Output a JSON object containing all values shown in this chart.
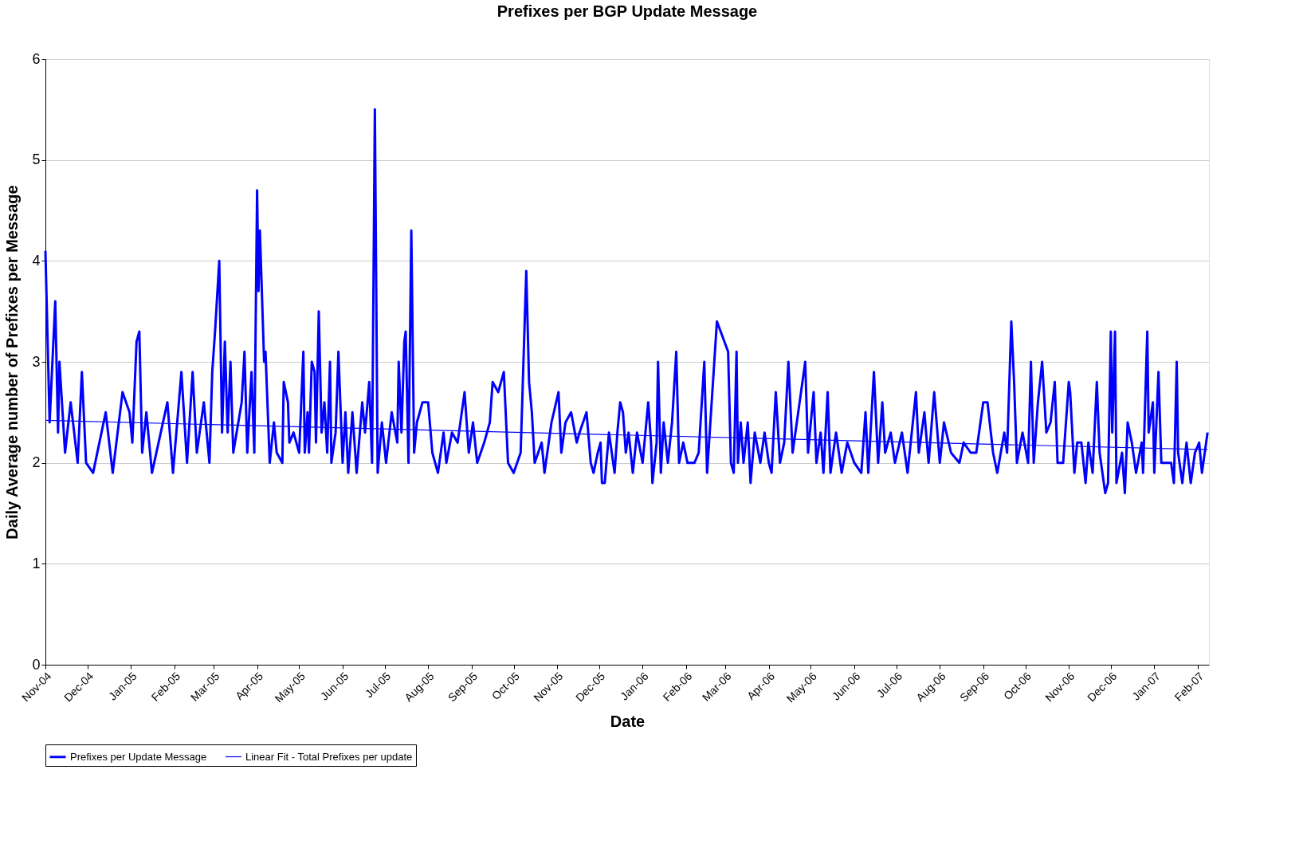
{
  "chart_data": {
    "type": "line",
    "title": "Prefixes per BGP Update Message",
    "xlabel": "Date",
    "ylabel": "Daily Average number of Prefixes per Message",
    "xlim": [
      "2004-11-01",
      "2007-02-09"
    ],
    "ylim": [
      0,
      6
    ],
    "yticks": [
      0,
      1,
      2,
      3,
      4,
      5,
      6
    ],
    "xticks": [
      {
        "value": "2004-11-01",
        "label": "Nov-04"
      },
      {
        "value": "2004-12-01",
        "label": "Dec-04"
      },
      {
        "value": "2005-01-01",
        "label": "Jan-05"
      },
      {
        "value": "2005-02-01",
        "label": "Feb-05"
      },
      {
        "value": "2005-03-01",
        "label": "Mar-05"
      },
      {
        "value": "2005-04-01",
        "label": "Apr-05"
      },
      {
        "value": "2005-05-01",
        "label": "May-05"
      },
      {
        "value": "2005-06-01",
        "label": "Jun-05"
      },
      {
        "value": "2005-07-01",
        "label": "Jul-05"
      },
      {
        "value": "2005-08-01",
        "label": "Aug-05"
      },
      {
        "value": "2005-09-01",
        "label": "Sep-05"
      },
      {
        "value": "2005-10-01",
        "label": "Oct-05"
      },
      {
        "value": "2005-11-01",
        "label": "Nov-05"
      },
      {
        "value": "2005-12-01",
        "label": "Dec-05"
      },
      {
        "value": "2006-01-01",
        "label": "Jan-06"
      },
      {
        "value": "2006-02-01",
        "label": "Feb-06"
      },
      {
        "value": "2006-03-01",
        "label": "Mar-06"
      },
      {
        "value": "2006-04-01",
        "label": "Apr-06"
      },
      {
        "value": "2006-05-01",
        "label": "May-06"
      },
      {
        "value": "2006-06-01",
        "label": "Jun-06"
      },
      {
        "value": "2006-07-01",
        "label": "Jul-06"
      },
      {
        "value": "2006-08-01",
        "label": "Aug-06"
      },
      {
        "value": "2006-09-01",
        "label": "Sep-06"
      },
      {
        "value": "2006-10-01",
        "label": "Oct-06"
      },
      {
        "value": "2006-11-01",
        "label": "Nov-06"
      },
      {
        "value": "2006-12-01",
        "label": "Dec-06"
      },
      {
        "value": "2007-01-01",
        "label": "Jan-07"
      },
      {
        "value": "2007-02-01",
        "label": "Feb-07"
      }
    ],
    "grid": "y",
    "legend": "bottom",
    "marker": "none",
    "series": [
      {
        "name": "Prefixes per Update Message",
        "color": "#0000ff",
        "x": [
          "2004-11-01",
          "2004-11-04",
          "2004-11-08",
          "2004-11-10",
          "2004-11-11",
          "2004-11-15",
          "2004-11-19",
          "2004-11-24",
          "2004-11-27",
          "2004-11-30",
          "2004-12-05",
          "2004-12-14",
          "2004-12-19",
          "2004-12-26",
          "2004-12-31",
          "2005-01-02",
          "2005-01-05",
          "2005-01-07",
          "2005-01-09",
          "2005-01-12",
          "2005-01-16",
          "2005-01-27",
          "2005-01-31",
          "2005-02-06",
          "2005-02-10",
          "2005-02-14",
          "2005-02-17",
          "2005-02-22",
          "2005-02-26",
          "2005-02-28",
          "2005-03-02",
          "2005-03-05",
          "2005-03-07",
          "2005-03-09",
          "2005-03-11",
          "2005-03-13",
          "2005-03-15",
          "2005-03-21",
          "2005-03-23",
          "2005-03-25",
          "2005-03-28",
          "2005-03-30",
          "2005-04-01",
          "2005-04-02",
          "2005-04-03",
          "2005-04-06",
          "2005-04-07",
          "2005-04-10",
          "2005-04-13",
          "2005-04-15",
          "2005-04-19",
          "2005-04-20",
          "2005-04-23",
          "2005-04-24",
          "2005-04-27",
          "2005-05-01",
          "2005-05-04",
          "2005-05-05",
          "2005-05-07",
          "2005-05-08",
          "2005-05-10",
          "2005-05-12",
          "2005-05-13",
          "2005-05-15",
          "2005-05-17",
          "2005-05-19",
          "2005-05-21",
          "2005-05-23",
          "2005-05-24",
          "2005-05-27",
          "2005-05-29",
          "2005-06-01",
          "2005-06-03",
          "2005-06-05",
          "2005-06-08",
          "2005-06-11",
          "2005-06-15",
          "2005-06-17",
          "2005-06-20",
          "2005-06-22",
          "2005-06-24",
          "2005-06-26",
          "2005-06-29",
          "2005-07-02",
          "2005-07-06",
          "2005-07-10",
          "2005-07-11",
          "2005-07-13",
          "2005-07-15",
          "2005-07-16",
          "2005-07-18",
          "2005-07-20",
          "2005-07-22",
          "2005-07-24",
          "2005-07-28",
          "2005-08-01",
          "2005-08-04",
          "2005-08-08",
          "2005-08-12",
          "2005-08-14",
          "2005-08-18",
          "2005-08-22",
          "2005-08-27",
          "2005-08-30",
          "2005-09-02",
          "2005-09-05",
          "2005-09-10",
          "2005-09-14",
          "2005-09-16",
          "2005-09-20",
          "2005-09-24",
          "2005-09-27",
          "2005-10-01",
          "2005-10-06",
          "2005-10-10",
          "2005-10-12",
          "2005-10-14",
          "2005-10-16",
          "2005-10-21",
          "2005-10-23",
          "2005-10-28",
          "2005-11-02",
          "2005-11-04",
          "2005-11-07",
          "2005-11-11",
          "2005-11-15",
          "2005-11-17",
          "2005-11-22",
          "2005-11-25",
          "2005-11-27",
          "2005-11-30",
          "2005-12-02",
          "2005-12-03",
          "2005-12-05",
          "2005-12-08",
          "2005-12-12",
          "2005-12-14",
          "2005-12-16",
          "2005-12-18",
          "2005-12-20",
          "2005-12-22",
          "2005-12-25",
          "2005-12-28",
          "2006-01-01",
          "2006-01-03",
          "2006-01-05",
          "2006-01-07",
          "2006-01-08",
          "2006-01-11",
          "2006-01-12",
          "2006-01-14",
          "2006-01-16",
          "2006-01-19",
          "2006-01-22",
          "2006-01-25",
          "2006-01-27",
          "2006-01-30",
          "2006-02-02",
          "2006-02-07",
          "2006-02-10",
          "2006-02-14",
          "2006-02-16",
          "2006-02-23",
          "2006-03-03",
          "2006-03-05",
          "2006-03-07",
          "2006-03-09",
          "2006-03-10",
          "2006-03-12",
          "2006-03-14",
          "2006-03-17",
          "2006-03-19",
          "2006-03-22",
          "2006-03-26",
          "2006-03-29",
          "2006-04-01",
          "2006-04-03",
          "2006-04-06",
          "2006-04-09",
          "2006-04-12",
          "2006-04-15",
          "2006-04-18",
          "2006-04-21",
          "2006-04-24",
          "2006-04-27",
          "2006-04-29",
          "2006-05-03",
          "2006-05-05",
          "2006-05-08",
          "2006-05-10",
          "2006-05-13",
          "2006-05-15",
          "2006-05-19",
          "2006-05-23",
          "2006-05-27",
          "2006-06-01",
          "2006-06-06",
          "2006-06-09",
          "2006-06-11",
          "2006-06-15",
          "2006-06-18",
          "2006-06-21",
          "2006-06-23",
          "2006-06-27",
          "2006-06-30",
          "2006-07-05",
          "2006-07-09",
          "2006-07-15",
          "2006-07-17",
          "2006-07-21",
          "2006-07-24",
          "2006-07-28",
          "2006-08-01",
          "2006-08-04",
          "2006-08-09",
          "2006-08-15",
          "2006-08-18",
          "2006-08-23",
          "2006-08-27",
          "2006-09-01",
          "2006-09-04",
          "2006-09-08",
          "2006-09-11",
          "2006-09-16",
          "2006-09-18",
          "2006-09-21",
          "2006-09-23",
          "2006-09-25",
          "2006-09-29",
          "2006-10-03",
          "2006-10-05",
          "2006-10-07",
          "2006-10-10",
          "2006-10-13",
          "2006-10-16",
          "2006-10-19",
          "2006-10-22",
          "2006-10-24",
          "2006-10-28",
          "2006-11-01",
          "2006-11-02",
          "2006-11-05",
          "2006-11-07",
          "2006-11-10",
          "2006-11-13",
          "2006-11-15",
          "2006-11-18",
          "2006-11-21",
          "2006-11-23",
          "2006-11-27",
          "2006-11-29",
          "2006-12-01",
          "2006-12-02",
          "2006-12-04",
          "2006-12-05",
          "2006-12-09",
          "2006-12-11",
          "2006-12-13",
          "2006-12-16",
          "2006-12-19",
          "2006-12-23",
          "2006-12-24",
          "2006-12-27",
          "2006-12-28",
          "2006-12-31",
          "2007-01-01",
          "2007-01-04",
          "2007-01-06",
          "2007-01-09",
          "2007-01-13",
          "2007-01-15",
          "2007-01-17",
          "2007-01-18",
          "2007-01-21",
          "2007-01-24",
          "2007-01-27",
          "2007-01-30",
          "2007-02-02",
          "2007-02-04",
          "2007-02-08"
        ],
        "values": [
          4.1,
          2.4,
          3.6,
          2.3,
          3.0,
          2.1,
          2.6,
          2.0,
          2.9,
          2.0,
          1.9,
          2.5,
          1.9,
          2.7,
          2.5,
          2.2,
          3.2,
          3.3,
          2.1,
          2.5,
          1.9,
          2.6,
          1.9,
          2.9,
          2.0,
          2.9,
          2.1,
          2.6,
          2.0,
          2.9,
          3.3,
          4.0,
          2.3,
          3.2,
          2.3,
          3.0,
          2.1,
          2.6,
          3.1,
          2.1,
          2.9,
          2.1,
          4.7,
          3.7,
          4.3,
          3.0,
          3.1,
          2.0,
          2.4,
          2.1,
          2.0,
          2.8,
          2.6,
          2.2,
          2.3,
          2.1,
          3.1,
          2.1,
          2.5,
          2.1,
          3.0,
          2.9,
          2.2,
          3.5,
          2.3,
          2.6,
          2.1,
          3.0,
          2.0,
          2.3,
          3.1,
          2.0,
          2.5,
          1.9,
          2.5,
          1.9,
          2.6,
          2.3,
          2.8,
          2.0,
          5.5,
          1.9,
          2.4,
          2.0,
          2.5,
          2.2,
          3.0,
          2.3,
          3.2,
          3.3,
          2.0,
          4.3,
          2.1,
          2.4,
          2.6,
          2.6,
          2.1,
          1.9,
          2.3,
          2.0,
          2.3,
          2.2,
          2.7,
          2.1,
          2.4,
          2.0,
          2.2,
          2.4,
          2.8,
          2.7,
          2.9,
          2.0,
          1.9,
          2.1,
          3.9,
          2.8,
          2.5,
          2.0,
          2.2,
          1.9,
          2.4,
          2.7,
          2.1,
          2.4,
          2.5,
          2.2,
          2.3,
          2.5,
          2.0,
          1.9,
          2.1,
          2.2,
          1.8,
          1.8,
          2.3,
          1.9,
          2.3,
          2.6,
          2.5,
          2.1,
          2.3,
          1.9,
          2.3,
          2.0,
          2.3,
          2.6,
          2.2,
          1.8,
          2.2,
          3.0,
          1.9,
          2.4,
          2.0,
          2.4,
          3.1,
          2.0,
          2.2,
          2.0,
          2.0,
          2.1,
          3.0,
          1.9,
          3.4,
          3.1,
          2.0,
          1.9,
          3.1,
          2.0,
          2.4,
          2.0,
          2.4,
          1.8,
          2.3,
          2.0,
          2.3,
          2.0,
          1.9,
          2.7,
          2.0,
          2.2,
          3.0,
          2.1,
          2.4,
          2.7,
          3.0,
          2.1,
          2.7,
          2.0,
          2.3,
          1.9,
          2.7,
          1.9,
          2.3,
          1.9,
          2.2,
          2.0,
          1.9,
          2.5,
          1.9,
          2.9,
          2.0,
          2.6,
          2.1,
          2.3,
          2.0,
          2.3,
          1.9,
          2.7,
          2.1,
          2.5,
          2.0,
          2.7,
          2.0,
          2.4,
          2.1,
          2.0,
          2.2,
          2.1,
          2.1,
          2.6,
          2.6,
          2.1,
          1.9,
          2.3,
          2.1,
          3.4,
          2.8,
          2.0,
          2.3,
          2.0,
          3.0,
          2.0,
          2.6,
          3.0,
          2.3,
          2.4,
          2.8,
          2.0,
          2.0,
          2.8,
          2.7,
          1.9,
          2.2,
          2.2,
          1.8,
          2.2,
          1.9,
          2.8,
          2.1,
          1.7,
          1.8,
          3.3,
          2.3,
          3.3,
          1.8,
          2.1,
          1.7,
          2.4,
          2.2,
          1.9,
          2.2,
          1.9,
          3.3,
          2.3,
          2.6,
          1.9,
          2.9,
          2.0,
          2.0,
          2.0,
          1.8,
          3.0,
          2.1,
          1.8,
          2.2,
          1.8,
          2.1,
          2.2,
          1.9,
          2.3
        ]
      },
      {
        "name": "Linear Fit - Total Prefixes per update",
        "color": "#0000ff",
        "x": [
          "2004-11-01",
          "2007-02-08"
        ],
        "values": [
          2.42,
          2.13
        ]
      }
    ]
  }
}
